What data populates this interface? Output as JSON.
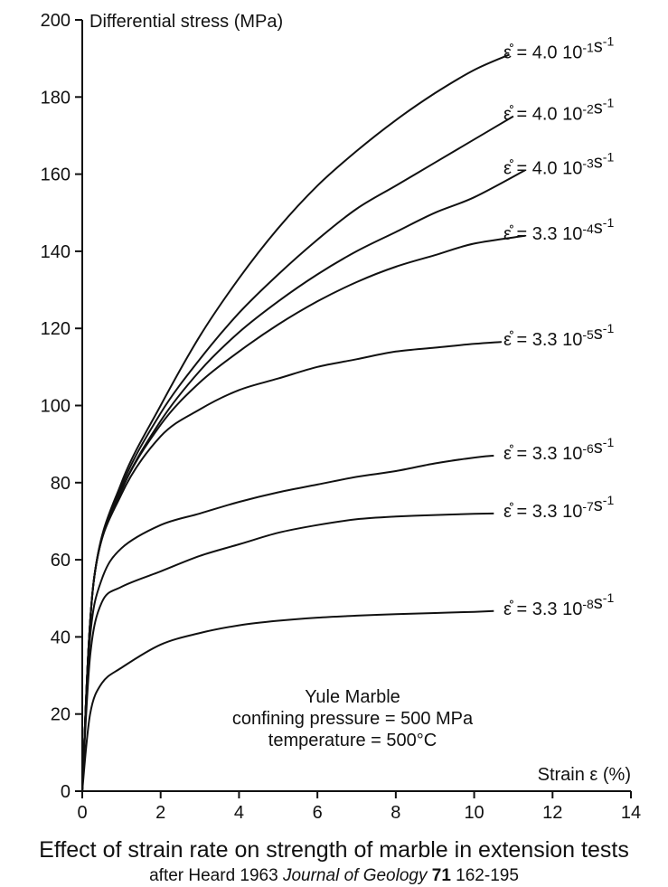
{
  "chart_data": {
    "type": "line",
    "title": "Effect of strain rate on strength of marble in extension tests",
    "subtitle": {
      "prefix": "after Heard 1963",
      "journal": "Journal of Geology",
      "volume": "71",
      "pages": "162-195"
    },
    "xlabel": "Strain ε (%)",
    "ylabel": "Differential stress (MPa)",
    "xlim": [
      0,
      14
    ],
    "ylim": [
      0,
      200
    ],
    "xticks": [
      0,
      2,
      4,
      6,
      8,
      10,
      12,
      14
    ],
    "yticks": [
      0,
      20,
      40,
      60,
      80,
      100,
      120,
      140,
      160,
      180,
      200
    ],
    "grid": false,
    "annotation": [
      "Yule Marble",
      "confining pressure = 500 MPa",
      "temperature = 500°C"
    ],
    "series": [
      {
        "name": "ε̊ = 4.0 10-1s-1",
        "rate": "4.0",
        "exp": "-1",
        "x": [
          0,
          0.3,
          1,
          2,
          3,
          4,
          5,
          6,
          7,
          8,
          9,
          10,
          10.9
        ],
        "y": [
          0,
          55,
          80,
          100,
          118,
          133,
          146,
          157,
          166,
          174,
          181,
          187,
          191
        ]
      },
      {
        "name": "ε̊ = 4.0 10-2s-1",
        "rate": "4.0",
        "exp": "-2",
        "x": [
          0,
          0.3,
          1,
          2,
          3,
          4,
          5,
          6,
          7,
          8,
          9,
          10,
          11
        ],
        "y": [
          0,
          55,
          79,
          98,
          112,
          124,
          134,
          143,
          151,
          157,
          163,
          169,
          175
        ]
      },
      {
        "name": "ε̊ = 4.0 10-3s-1",
        "rate": "4.0",
        "exp": "-3",
        "x": [
          0,
          0.3,
          1,
          2,
          3,
          4,
          5,
          6,
          7,
          8,
          9,
          10,
          11.3
        ],
        "y": [
          0,
          55,
          78,
          96,
          109,
          119,
          127,
          134,
          140,
          145,
          150,
          154,
          161
        ]
      },
      {
        "name": "ε̊ = 3.3 10-4s-1",
        "rate": "3.3",
        "exp": "-4",
        "x": [
          0,
          0.3,
          1,
          2,
          3,
          4,
          5,
          6,
          7,
          8,
          9,
          10,
          11.3
        ],
        "y": [
          0,
          55,
          78,
          95,
          106,
          114,
          121,
          127,
          132,
          136,
          139,
          142,
          144
        ]
      },
      {
        "name": "ε̊ = 3.3 10-5s-1",
        "rate": "3.3",
        "exp": "-5",
        "x": [
          0,
          0.3,
          1,
          2,
          3,
          4,
          5,
          6,
          7,
          8,
          9,
          10,
          10.7
        ],
        "y": [
          0,
          55,
          77,
          92,
          99,
          104,
          107,
          110,
          112,
          114,
          115,
          116,
          116.5
        ]
      },
      {
        "name": "ε̊ = 3.3 10-6s-1",
        "rate": "3.3",
        "exp": "-6",
        "x": [
          0,
          0.2,
          0.5,
          1,
          2,
          3,
          4,
          5,
          6,
          7,
          8,
          9,
          10,
          10.5
        ],
        "y": [
          0,
          40,
          55,
          63,
          69,
          72,
          75,
          77.5,
          79.5,
          81.5,
          83,
          85,
          86.5,
          87
        ]
      },
      {
        "name": "ε̊ = 3.3 10-7s-1",
        "rate": "3.3",
        "exp": "-7",
        "x": [
          0,
          0.2,
          0.5,
          1,
          2,
          3,
          4,
          5,
          6,
          7,
          8,
          9,
          10,
          10.5
        ],
        "y": [
          0,
          35,
          49,
          53,
          57,
          61,
          64,
          67,
          69,
          70.5,
          71.2,
          71.6,
          71.9,
          72
        ]
      },
      {
        "name": "ε̊ = 3.3 10-8s-1",
        "rate": "3.3",
        "exp": "-8",
        "x": [
          0,
          0.2,
          0.5,
          1,
          2,
          3,
          4,
          5,
          6,
          7,
          8,
          9,
          10,
          10.5
        ],
        "y": [
          0,
          20,
          28,
          32,
          38,
          41,
          43,
          44.2,
          45,
          45.5,
          45.9,
          46.2,
          46.5,
          46.7
        ]
      }
    ]
  }
}
